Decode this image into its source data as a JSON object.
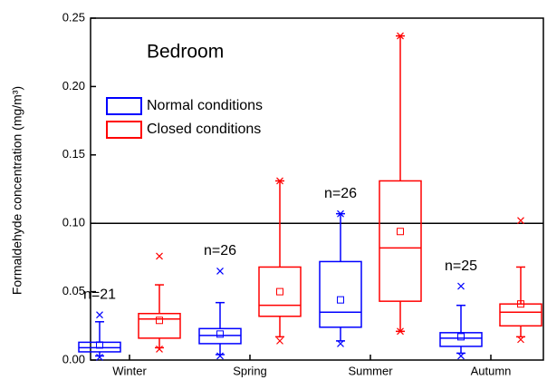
{
  "chart_data": {
    "type": "box",
    "annotation": "Bedroom",
    "y_label": "Formaldehyde concentration (mg/m³)",
    "categories": [
      "Winter",
      "Spring",
      "Summer",
      "Autumn"
    ],
    "n_labels": [
      "n=21",
      "n=26",
      "n=26",
      "n=25"
    ],
    "reference_line": 0.1,
    "ylim": [
      0,
      0.25
    ],
    "yticks": [
      {
        "value": 0,
        "label": "0.00"
      },
      {
        "value": 0.05,
        "label": "0.05"
      },
      {
        "value": 0.1,
        "label": "0.10"
      },
      {
        "value": 0.15,
        "label": "0.15"
      },
      {
        "value": 0.2,
        "label": "0.20"
      },
      {
        "value": 0.25,
        "label": "0.25"
      }
    ],
    "series": [
      {
        "name": "Normal conditions",
        "color": "#0000ff",
        "whisker_low": [
          0.003,
          0.004,
          0.014,
          0.005
        ],
        "q1": [
          0.006,
          0.012,
          0.024,
          0.01
        ],
        "median": [
          0.009,
          0.018,
          0.035,
          0.016
        ],
        "q3": [
          0.013,
          0.023,
          0.072,
          0.02
        ],
        "whisker_high": [
          0.028,
          0.042,
          0.107,
          0.04
        ],
        "mean": [
          0.011,
          0.019,
          0.044,
          0.017
        ],
        "min": [
          0.002,
          0.003,
          0.012,
          0.003
        ],
        "max": [
          0.033,
          0.065,
          0.107,
          0.054
        ]
      },
      {
        "name": "Closed conditions",
        "color": "#ff0000",
        "whisker_low": [
          0.009,
          0.017,
          0.021,
          0.017
        ],
        "q1": [
          0.016,
          0.032,
          0.043,
          0.025
        ],
        "median": [
          0.03,
          0.04,
          0.082,
          0.035
        ],
        "q3": [
          0.034,
          0.068,
          0.131,
          0.041
        ],
        "whisker_high": [
          0.055,
          0.131,
          0.237,
          0.068
        ],
        "mean": [
          0.029,
          0.05,
          0.094,
          0.041
        ],
        "min": [
          0.008,
          0.014,
          0.021,
          0.015
        ],
        "max": [
          0.076,
          0.131,
          0.237,
          0.102
        ]
      }
    ]
  }
}
